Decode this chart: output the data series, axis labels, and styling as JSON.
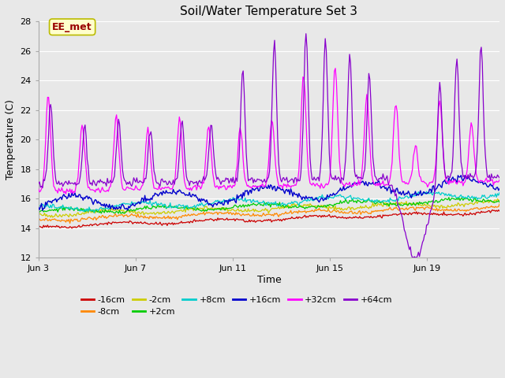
{
  "title": "Soil/Water Temperature Set 3",
  "xlabel": "Time",
  "ylabel": "Temperature (C)",
  "ylim": [
    12,
    28
  ],
  "yticks": [
    12,
    14,
    16,
    18,
    20,
    22,
    24,
    26,
    28
  ],
  "xtick_labels": [
    "Jun 3",
    "Jun 7",
    "Jun 11",
    "Jun 15",
    "Jun 19"
  ],
  "annotation": "EE_met",
  "bg_color": "#e8e8e8",
  "plot_bg_color": "#e8e8e8",
  "series_colors": {
    "-16cm": "#cc0000",
    "-8cm": "#ff8800",
    "-2cm": "#cccc00",
    "+2cm": "#00cc00",
    "+8cm": "#00cccc",
    "+16cm": "#0000cc",
    "+32cm": "#ff00ff",
    "+64cm": "#8800cc"
  },
  "legend_order": [
    "-16cm",
    "-8cm",
    "-2cm",
    "+2cm",
    "+8cm",
    "+16cm",
    "+32cm",
    "+64cm"
  ],
  "n_days": 19,
  "samples_per_day": 24,
  "figsize": [
    6.4,
    4.8
  ],
  "dpi": 100
}
